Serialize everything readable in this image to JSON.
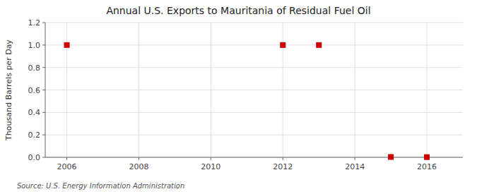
{
  "chart_data": {
    "type": "scatter",
    "title": "Annual U.S. Exports to Mauritania of Residual Fuel Oil",
    "y_label": "Thousand Barrels per Day",
    "annotations": [
      "Source: U.S. Energy Information Administration"
    ],
    "x": [
      2006,
      2012,
      2013,
      2015,
      2016
    ],
    "values": [
      1.0,
      1.0,
      1.0,
      0.003,
      0.002
    ],
    "color": "#cc0000",
    "marker": "square",
    "xlim": [
      2005.4,
      2017.0
    ],
    "ylim": [
      0.0,
      1.2
    ],
    "xticks": [
      2006,
      2008,
      2010,
      2012,
      2014,
      2016
    ],
    "yticks": [
      {
        "value": 0,
        "label": "0.0"
      },
      0.2,
      0.4,
      0.6,
      0.8,
      {
        "value": 1,
        "label": "1.0"
      },
      1.2
    ],
    "grid": true
  }
}
